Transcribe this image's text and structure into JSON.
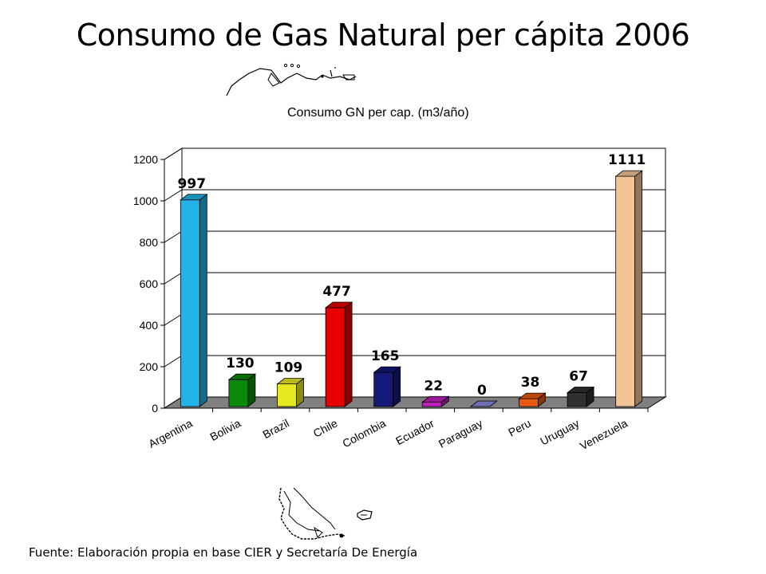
{
  "page": {
    "title": "Consumo de Gas Natural per cápita  2006",
    "footer": "Fuente:  Elaboración propia en base CIER y Secretaría De Energía"
  },
  "chart_data": {
    "type": "bar",
    "title": "Consumo GN per cap. (m3/año)",
    "xlabel": "",
    "ylabel": "",
    "ylim": [
      0,
      1200
    ],
    "yticks": [
      0,
      200,
      400,
      600,
      800,
      1000,
      1200
    ],
    "grid": true,
    "categories": [
      "Argentina",
      "Bolivia",
      "Brazil",
      "Chile",
      "Colombia",
      "Ecuador",
      "Paraguay",
      "Peru",
      "Uruguay",
      "Venezuela"
    ],
    "values": [
      997,
      130,
      109,
      477,
      165,
      22,
      0,
      38,
      67,
      1111
    ],
    "colors": [
      "#22b4e8",
      "#0a8a0a",
      "#e8e820",
      "#e80000",
      "#141a78",
      "#c020c0",
      "#8a8ae0",
      "#e85a10",
      "#303030",
      "#f2c496"
    ]
  }
}
